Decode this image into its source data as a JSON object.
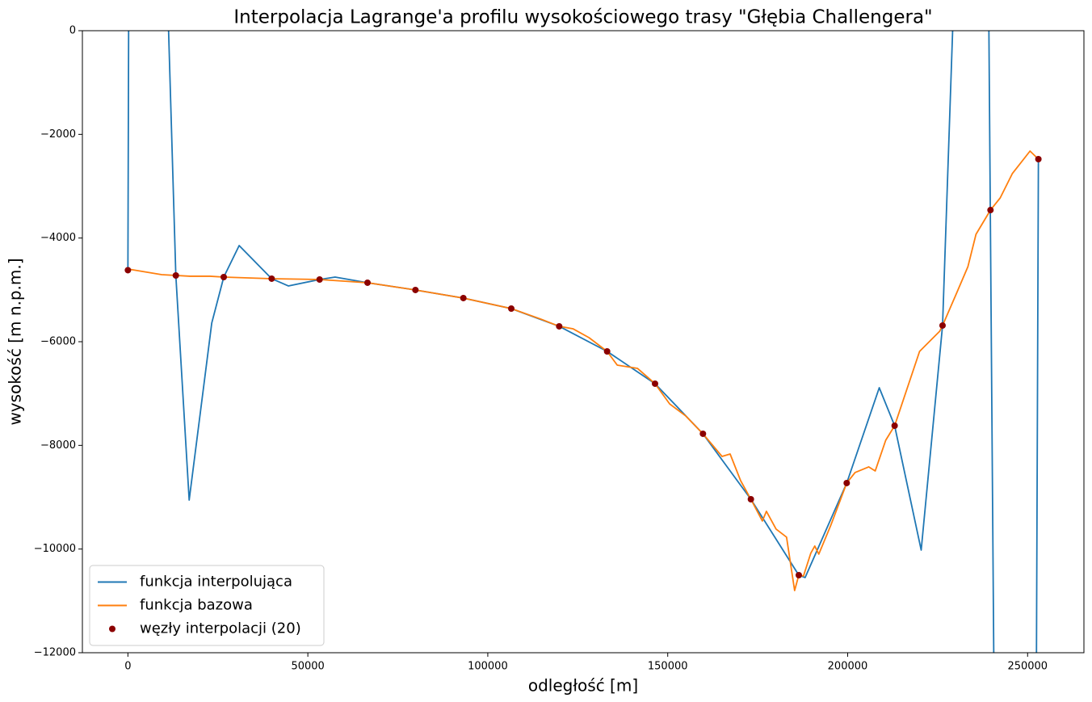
{
  "chart_data": {
    "type": "line",
    "title": "Interpolacja Lagrange'a profilu wysokościowego trasy \"Głębia Challengera\"",
    "xlabel": "odległość [m]",
    "ylabel": "wysokość [m n.p.m.]",
    "xlim": [
      -12650,
      265650
    ],
    "ylim": [
      -12000,
      0
    ],
    "xticks": [
      0,
      50000,
      100000,
      150000,
      200000,
      250000
    ],
    "yticks": [
      {
        "value": -12000,
        "label": "−12000"
      },
      {
        "value": -10000,
        "label": "−10000"
      },
      {
        "value": -8000,
        "label": "−8000"
      },
      {
        "value": -6000,
        "label": "−6000"
      },
      {
        "value": -4000,
        "label": "−4000"
      },
      {
        "value": -2000,
        "label": "−2000"
      },
      0
    ],
    "legend": "lower left",
    "series": [
      {
        "name": "funkcja interpolująca",
        "style": "line",
        "color": "#1f77b4",
        "x": [
          0,
          200,
          5700,
          11300,
          13316,
          17025,
          23297,
          26632,
          30914,
          39947,
          44579,
          53263,
          57572,
          66579,
          79895,
          93211,
          106526,
          119842,
          133158,
          146474,
          159789,
          173105,
          186421,
          188172,
          199737,
          208781,
          213053,
          220430,
          226368,
          229167,
          234000,
          239247,
          240591,
          246000,
          252464,
          253000
        ],
        "values": [
          -4620,
          0,
          null,
          0,
          -4722,
          -9055,
          -5640,
          -4753,
          -4145,
          -4784,
          -4924,
          -4800,
          -4753,
          -4862,
          -5002,
          -5158,
          -5361,
          -5703,
          -6187,
          -6810,
          -7776,
          -9039,
          -10504,
          -10550,
          -8727,
          -6888,
          -7621,
          -10020,
          -5688,
          0,
          null,
          0,
          -12000,
          null,
          -12000,
          -2478
        ]
      },
      {
        "name": "funkcja bazowa",
        "style": "line",
        "color": "#ff7f0e",
        "x": [
          0,
          9400,
          17250,
          22800,
          26632,
          39947,
          53263,
          66579,
          79895,
          93211,
          106526,
          114695,
          119842,
          123656,
          128136,
          133158,
          135977,
          141577,
          146474,
          150538,
          155018,
          159789,
          165097,
          167338,
          170251,
          173105,
          176299,
          177419,
          180108,
          183020,
          185260,
          186421,
          187724,
          189740,
          190860,
          191980,
          195340,
          199737,
          202061,
          205868,
          207660,
          210573,
          213053,
          219982,
          225583,
          226368,
          230063,
          233423,
          235663,
          239684,
          242384,
          245744,
          250672,
          253000
        ],
        "values": [
          -4597,
          -4706,
          -4737,
          -4737,
          -4753,
          -4784,
          -4800,
          -4862,
          -5002,
          -5158,
          -5361,
          -5563,
          -5703,
          -5750,
          -5922,
          -6187,
          -6452,
          -6514,
          -6810,
          -7200,
          -7433,
          -7776,
          -8213,
          -8166,
          -8680,
          -9039,
          -9459,
          -9272,
          -9615,
          -9771,
          -10800,
          -10504,
          -10519,
          -10083,
          -9942,
          -10098,
          -9537,
          -8727,
          -8524,
          -8415,
          -8493,
          -7901,
          -7621,
          -6187,
          -5797,
          -5688,
          -5096,
          -4550,
          -3927,
          -3460,
          -3226,
          -2758,
          -2322,
          -2478
        ]
      },
      {
        "name": "węzły interpolacji (20)",
        "style": "scatter",
        "color": "#8b0000",
        "x": [
          0,
          13316,
          26632,
          39947,
          53263,
          66579,
          79895,
          93211,
          106526,
          119842,
          133158,
          146474,
          159789,
          173105,
          186421,
          199737,
          213053,
          226368,
          239684,
          253000
        ],
        "values": [
          -4620,
          -4722,
          -4753,
          -4784,
          -4800,
          -4862,
          -5002,
          -5158,
          -5361,
          -5703,
          -6187,
          -6810,
          -7776,
          -9039,
          -10504,
          -8727,
          -7621,
          -5688,
          -3460,
          -2478
        ]
      }
    ]
  }
}
